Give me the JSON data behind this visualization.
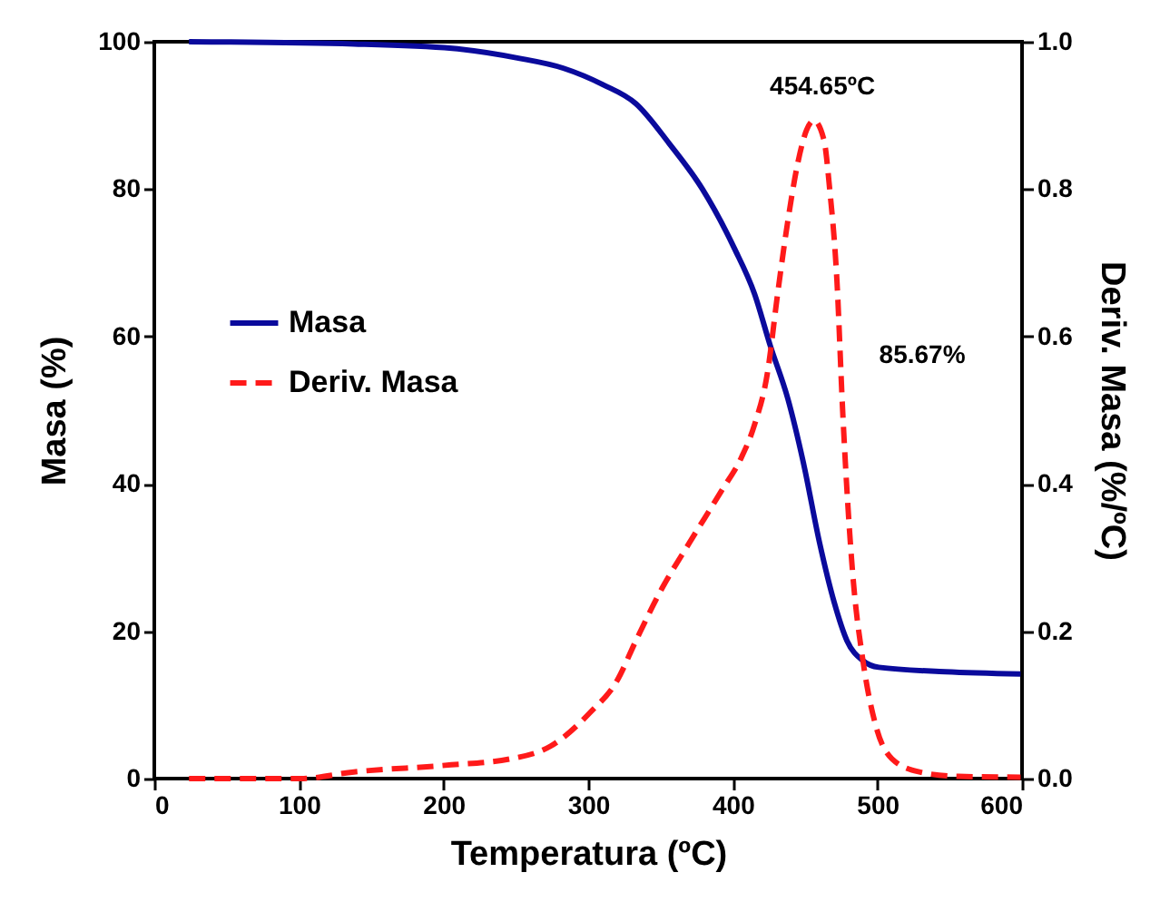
{
  "chart_data": {
    "type": "line",
    "xlabel": "Temperatura (ºC)",
    "ylabel": "Masa (%)",
    "y2label": "Deriv. Masa (%/ºC)",
    "xlim": [
      0,
      600
    ],
    "xticks": [
      0,
      100,
      200,
      300,
      400,
      500,
      600
    ],
    "ylim": [
      0,
      100
    ],
    "yticks": [
      0,
      20,
      40,
      60,
      80,
      100
    ],
    "y2lim": [
      0,
      1
    ],
    "y2ticks": [
      {
        "value": 0,
        "label": "0.0"
      },
      {
        "value": 0.2,
        "label": "0.2"
      },
      {
        "value": 0.4,
        "label": "0.4"
      },
      {
        "value": 0.6,
        "label": "0.6"
      },
      {
        "value": 0.8,
        "label": "0.8"
      },
      {
        "value": 1,
        "label": "1.0"
      }
    ],
    "grid": false,
    "legend": "left",
    "marker": "none",
    "annotations": [
      "454.65ºC",
      "85.67%"
    ],
    "series": [
      {
        "name": "Masa",
        "color": "#0a0a9c",
        "line_style": "solid",
        "x": [
          24,
          138,
          206,
          251,
          283,
          310,
          333,
          356,
          379,
          401,
          415,
          426,
          438,
          449,
          460,
          470,
          479,
          490,
          501,
          547,
          599
        ],
        "values": [
          100,
          99.7,
          99.1,
          97.8,
          96.4,
          94.2,
          91.6,
          86.2,
          80,
          72,
          65.8,
          58.7,
          51.6,
          42.7,
          32,
          24,
          18.7,
          16,
          15.1,
          14.5,
          14.2
        ]
      },
      {
        "name": "Deriv. Masa",
        "color": "#ff1a1a",
        "line_style": "dashed",
        "axis": "y2",
        "x": [
          24,
          101,
          138,
          201,
          247,
          274,
          301,
          320,
          333,
          351,
          370,
          392,
          406,
          415,
          424,
          431,
          438,
          445,
          451,
          456,
          463,
          467,
          472,
          476,
          483,
          490,
          499,
          510,
          529,
          556,
          599
        ],
        "values": [
          0,
          0,
          0.009,
          0.018,
          0.027,
          0.044,
          0.089,
          0.133,
          0.187,
          0.258,
          0.32,
          0.39,
          0.436,
          0.48,
          0.551,
          0.658,
          0.756,
          0.836,
          0.88,
          0.893,
          0.867,
          0.8,
          0.676,
          0.498,
          0.276,
          0.16,
          0.071,
          0.027,
          0.009,
          0.003,
          0.002
        ]
      }
    ]
  }
}
